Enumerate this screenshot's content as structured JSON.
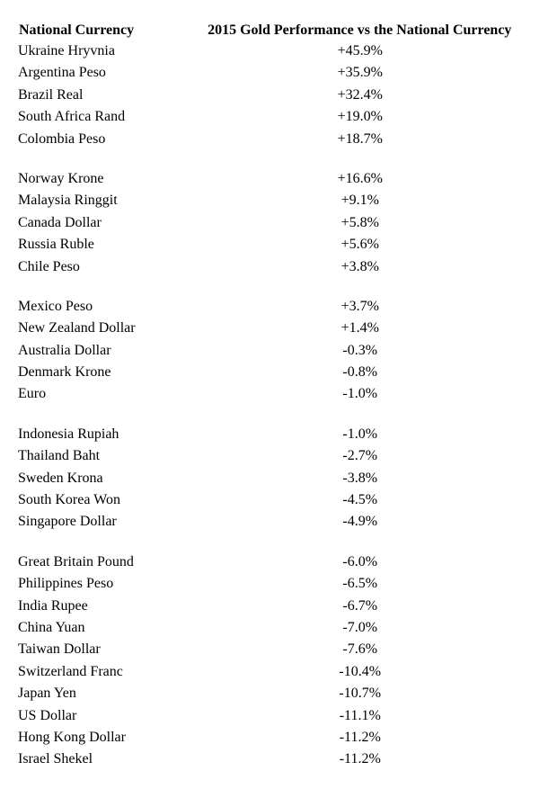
{
  "table": {
    "type": "table",
    "background_color": "#ffffff",
    "text_color": "#000000",
    "font_family": "Times New Roman",
    "header_fontsize": 16,
    "cell_fontsize": 16,
    "columns": [
      {
        "label": "National Currency",
        "align": "left"
      },
      {
        "label": "2015 Gold Performance vs the National Currency",
        "align": "center"
      }
    ],
    "groups": [
      {
        "rows": [
          {
            "currency": "Ukraine Hryvnia",
            "value": "+45.9%"
          },
          {
            "currency": "Argentina Peso",
            "value": "+35.9%"
          },
          {
            "currency": "Brazil Real",
            "value": "+32.4%"
          },
          {
            "currency": "South Africa Rand",
            "value": "+19.0%"
          },
          {
            "currency": "Colombia Peso",
            "value": "+18.7%"
          }
        ]
      },
      {
        "rows": [
          {
            "currency": "Norway Krone",
            "value": "+16.6%"
          },
          {
            "currency": "Malaysia Ringgit",
            "value": "+9.1%"
          },
          {
            "currency": "Canada Dollar",
            "value": "+5.8%"
          },
          {
            "currency": "Russia Ruble",
            "value": "+5.6%"
          },
          {
            "currency": "Chile Peso",
            "value": "+3.8%"
          }
        ]
      },
      {
        "rows": [
          {
            "currency": "Mexico Peso",
            "value": "+3.7%"
          },
          {
            "currency": "New Zealand Dollar",
            "value": "+1.4%"
          },
          {
            "currency": "Australia Dollar",
            "value": "-0.3%"
          },
          {
            "currency": "Denmark Krone",
            "value": "-0.8%"
          },
          {
            "currency": "Euro",
            "value": "-1.0%"
          }
        ]
      },
      {
        "rows": [
          {
            "currency": "Indonesia Rupiah",
            "value": "-1.0%"
          },
          {
            "currency": "Thailand Baht",
            "value": "-2.7%"
          },
          {
            "currency": "Sweden Krona",
            "value": "-3.8%"
          },
          {
            "currency": "South Korea Won",
            "value": "-4.5%"
          },
          {
            "currency": "Singapore Dollar",
            "value": "-4.9%"
          }
        ]
      },
      {
        "rows": [
          {
            "currency": "Great Britain Pound",
            "value": "-6.0%"
          },
          {
            "currency": "Philippines Peso",
            "value": "-6.5%"
          },
          {
            "currency": "India Rupee",
            "value": "-6.7%"
          },
          {
            "currency": "China Yuan",
            "value": "-7.0%"
          },
          {
            "currency": "Taiwan Dollar",
            "value": "-7.6%"
          },
          {
            "currency": "Switzerland Franc",
            "value": "-10.4%"
          },
          {
            "currency": "Japan Yen",
            "value": "-10.7%"
          },
          {
            "currency": "US Dollar",
            "value": "-11.1%"
          },
          {
            "currency": "Hong Kong Dollar",
            "value": "-11.2%"
          },
          {
            "currency": "Israel Shekel",
            "value": "-11.2%"
          }
        ]
      }
    ]
  }
}
